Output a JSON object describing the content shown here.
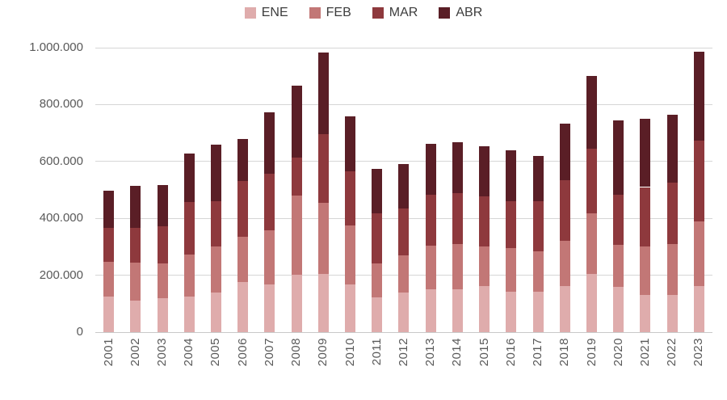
{
  "chart_data": {
    "type": "bar",
    "stacked": true,
    "title": "",
    "xlabel": "",
    "ylabel": "",
    "grid": true,
    "legend_position": "top",
    "ylim": [
      0,
      1000000
    ],
    "y_ticks": [
      {
        "value": 0,
        "label": "0"
      },
      {
        "value": 200000,
        "label": "200.000"
      },
      {
        "value": 400000,
        "label": "400.000"
      },
      {
        "value": 600000,
        "label": "600.000"
      },
      {
        "value": 800000,
        "label": "800.000"
      },
      {
        "value": 1000000,
        "label": "1.000.000"
      }
    ],
    "categories": [
      "2001",
      "2002",
      "2003",
      "2004",
      "2005",
      "2006",
      "2007",
      "2008",
      "2009",
      "2010",
      "2011",
      "2012",
      "2013",
      "2014",
      "2015",
      "2016",
      "2017",
      "2018",
      "2019",
      "2020",
      "2021",
      "2022",
      "2023"
    ],
    "series": [
      {
        "name": "ENE",
        "color": "#dfacac",
        "values": [
          126000,
          111000,
          118000,
          125000,
          139000,
          177000,
          168000,
          201000,
          206000,
          168000,
          122000,
          139000,
          150000,
          151000,
          161000,
          142000,
          142000,
          162000,
          204000,
          159000,
          132000,
          130000,
          163000
        ]
      },
      {
        "name": "FEB",
        "color": "#c27776",
        "values": [
          120000,
          133000,
          123000,
          147000,
          161000,
          158000,
          190000,
          279000,
          250000,
          206000,
          120000,
          132000,
          155000,
          159000,
          141000,
          154000,
          141000,
          160000,
          214000,
          149000,
          168000,
          180000,
          227000
        ]
      },
      {
        "name": "MAR",
        "color": "#8e393d",
        "values": [
          121000,
          122000,
          132000,
          185000,
          161000,
          197000,
          199000,
          135000,
          241000,
          191000,
          176000,
          164000,
          177000,
          178000,
          176000,
          164000,
          178000,
          211000,
          227000,
          176000,
          210000,
          217000,
          283000
        ]
      },
      {
        "name": "ABR",
        "color": "#5a1e26",
        "values": [
          131000,
          149000,
          145000,
          171000,
          199000,
          147000,
          215000,
          252000,
          286000,
          193000,
          155000,
          155000,
          180000,
          179000,
          175000,
          179000,
          157000,
          199000,
          255000,
          261000,
          239000,
          236000,
          312000
        ]
      }
    ]
  },
  "style": {
    "gridline_color": "#d6d6d6",
    "axis_label_color": "#595959",
    "legend_text_color": "#3d3d3d",
    "background": "#ffffff"
  }
}
